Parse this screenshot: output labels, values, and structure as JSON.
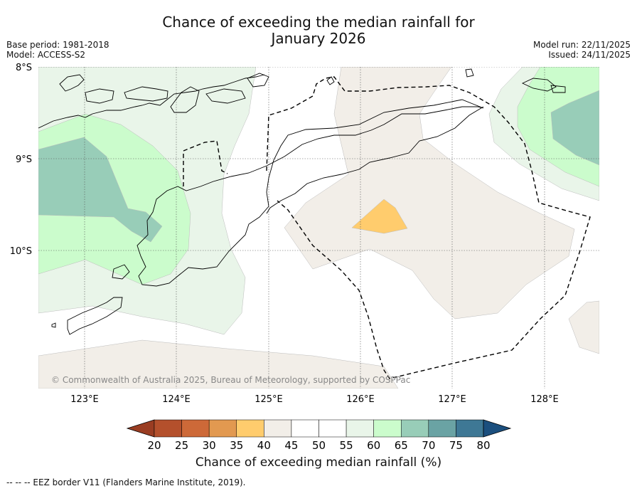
{
  "title": {
    "line1": "Chance of exceeding the median rainfall for",
    "line2": "January 2026"
  },
  "meta_left": {
    "base_period": "Base period: 1981-2018",
    "model": "Model: ACCESS-S2"
  },
  "meta_right": {
    "model_run": "Model run: 22/11/2025",
    "issued": "Issued: 24/11/2025"
  },
  "axes": {
    "lat_labels": [
      "8°S",
      "9°S",
      "10°S"
    ],
    "lon_labels": [
      "123°E",
      "124°E",
      "125°E",
      "126°E",
      "127°E",
      "128°E"
    ]
  },
  "copyright": "© Commonwealth of Australia 2025, Bureau of Meteorology, supported by COSPPac",
  "colorbar": {
    "ticks": [
      "20",
      "25",
      "30",
      "35",
      "40",
      "45",
      "50",
      "55",
      "60",
      "65",
      "70",
      "75",
      "80"
    ],
    "colors": [
      "#b4502c",
      "#cd6938",
      "#e29950",
      "#ffcc6d",
      "#f2eee8",
      "#ffffff",
      "#ffffff",
      "#e9f5e9",
      "#cbfccc",
      "#98cdb8",
      "#6aa3a4",
      "#3e7895"
    ],
    "under_color": "#9a3d22",
    "over_color": "#1b4f7e",
    "label": "Chance of exceeding median rainfall (%)"
  },
  "footer": "--  --  -- EEZ border V11 (Flanders Marine Institute, 2019)."
}
